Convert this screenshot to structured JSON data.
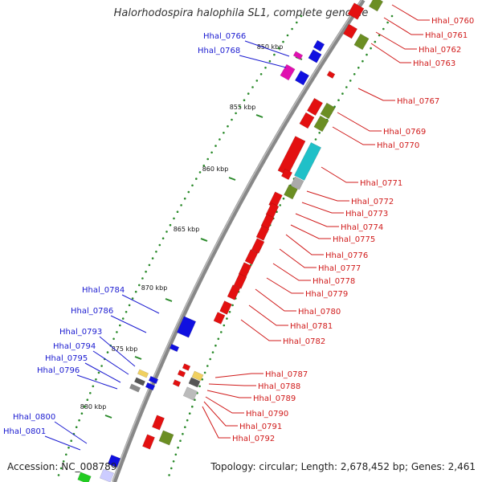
{
  "title": "Halorhodospira halophila SL1, complete genome",
  "footer": {
    "accession": "Accession: NC_008789",
    "topology": "Topology: circular; Length: 2,678,452 bp; Genes: 2,461"
  },
  "colors": {
    "backbone": "#888888",
    "forward_label": "#1a1ad0",
    "reverse_label": "#d01a1a",
    "tick": "#2a8a2a"
  },
  "scale_ticks": [
    "850 kbp",
    "855 kbp",
    "860 kbp",
    "865 kbp",
    "870 kbp",
    "875 kbp",
    "880 kbp"
  ],
  "labels_forward": [
    "Hhal_0766",
    "Hhal_0768",
    "Hhal_0784",
    "Hhal_0786",
    "Hhal_0793",
    "Hhal_0794",
    "Hhal_0795",
    "Hhal_0796",
    "Hhal_0800",
    "Hhal_0801"
  ],
  "labels_reverse": [
    "Hhal_0760",
    "Hhal_0761",
    "Hhal_0762",
    "Hhal_0763",
    "Hhal_0767",
    "Hhal_0769",
    "Hhal_0770",
    "Hhal_0771",
    "Hhal_0772",
    "Hhal_0773",
    "Hhal_0774",
    "Hhal_0775",
    "Hhal_0776",
    "Hhal_0777",
    "Hhal_0778",
    "Hhal_0779",
    "Hhal_0780",
    "Hhal_0781",
    "Hhal_0782",
    "Hhal_0787",
    "Hhal_0788",
    "Hhal_0789",
    "Hhal_0790",
    "Hhal_0791",
    "Hhal_0792"
  ]
}
